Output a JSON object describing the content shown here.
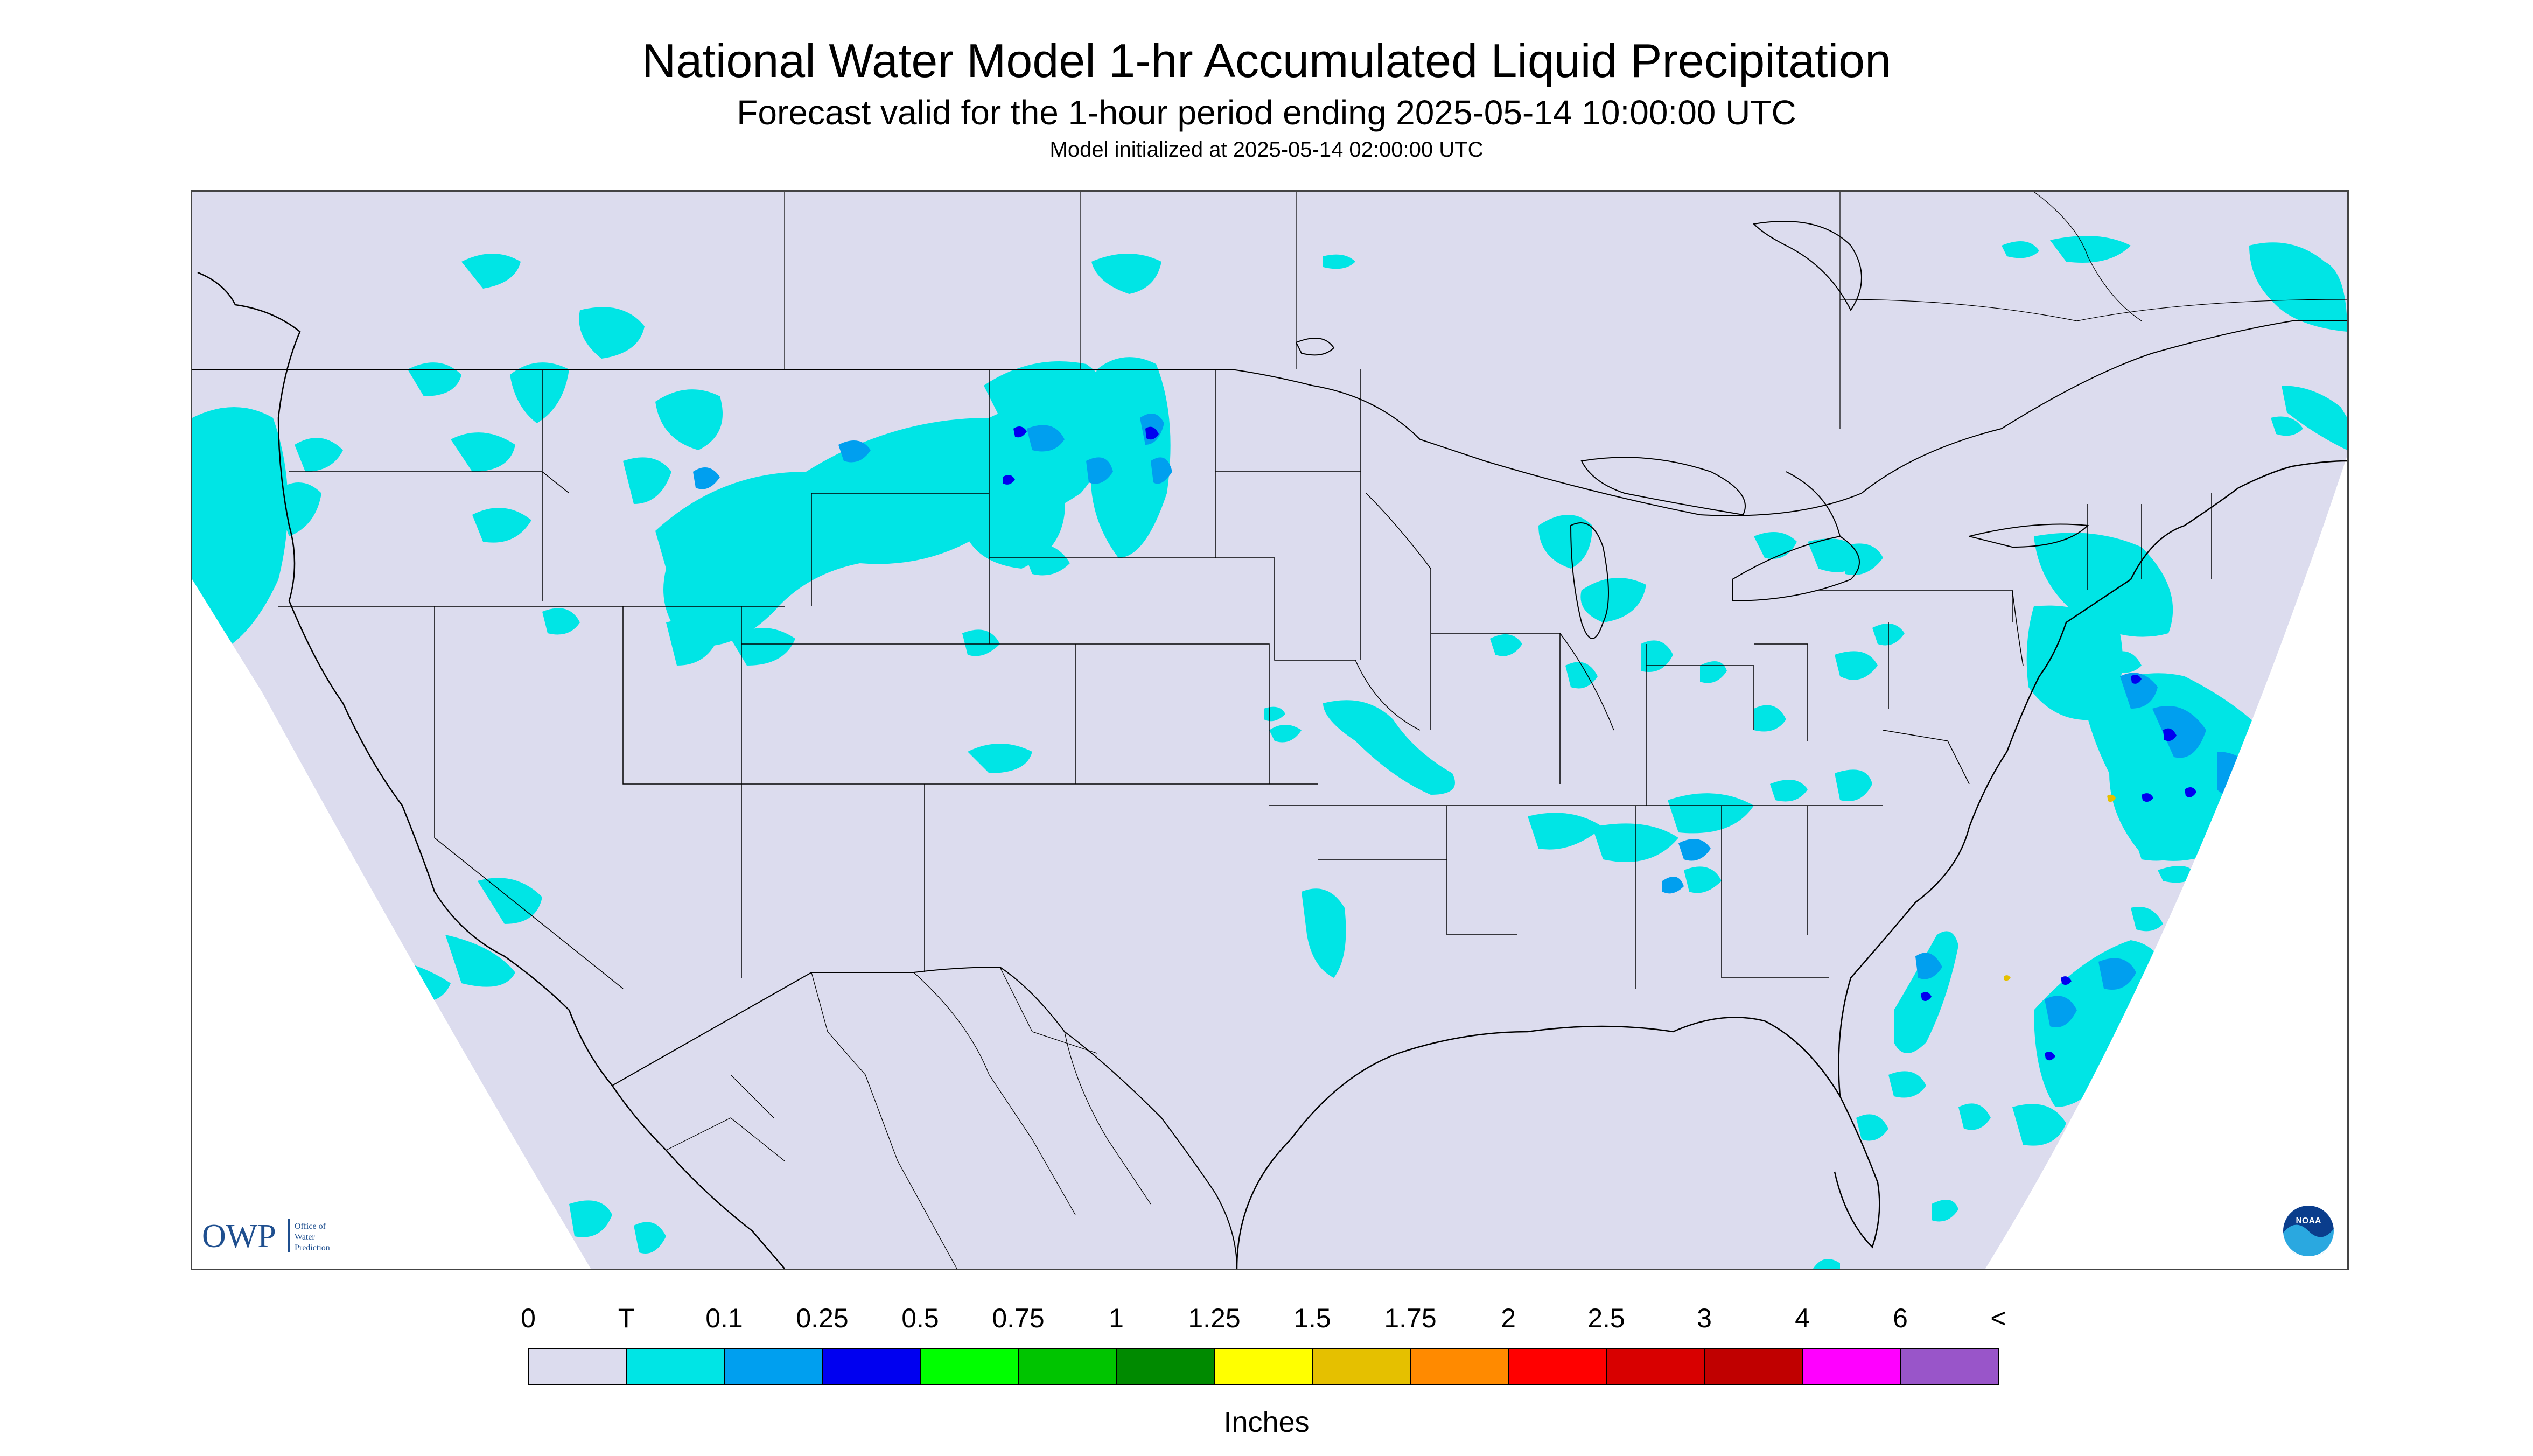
{
  "titles": {
    "main": "National Water Model 1-hr Accumulated Liquid Precipitation",
    "sub": "Forecast valid for the 1-hour period ending 2025-05-14 10:00:00 UTC",
    "init": "Model initialized at 2025-05-14 02:00:00 UTC"
  },
  "map": {
    "region": "Contiguous United States",
    "background_color": "#dcdcee",
    "outside_domain_color": "#ffffff",
    "boundary_color": "#000000",
    "logo_left": {
      "letters": "OWP",
      "lines": [
        "Office of",
        "Water",
        "Prediction"
      ],
      "color": "#1f4f8f"
    },
    "logo_right": {
      "text": "NOAA",
      "colors": [
        "#0a3d8c",
        "#2aa8e0"
      ]
    }
  },
  "legend": {
    "tick_labels": [
      "0",
      "T",
      "0.1",
      "0.25",
      "0.5",
      "0.75",
      "1",
      "1.25",
      "1.5",
      "1.75",
      "2",
      "2.5",
      "3",
      "4",
      "6",
      "<"
    ],
    "colors": [
      "#dcdcee",
      "#00e5e5",
      "#009fef",
      "#0000f0",
      "#00ff00",
      "#00c400",
      "#008a00",
      "#ffff00",
      "#e5c000",
      "#ff8a00",
      "#ff0000",
      "#d80000",
      "#c00000",
      "#ff00ff",
      "#9955c9"
    ],
    "units": "Inches"
  }
}
